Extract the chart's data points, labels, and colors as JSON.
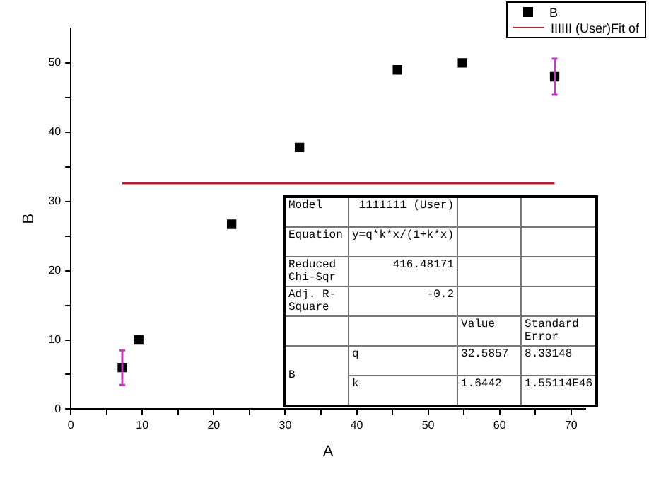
{
  "chart_data": {
    "type": "scatter",
    "xlabel": "A",
    "ylabel": "B",
    "xlim": [
      0,
      72
    ],
    "ylim": [
      0,
      55
    ],
    "xticks": [
      0,
      {
        "value": 5,
        "label": null
      },
      10,
      {
        "value": 15,
        "label": null
      },
      20,
      {
        "value": 25,
        "label": null
      },
      30,
      {
        "value": 35,
        "label": null
      },
      40,
      {
        "value": 45,
        "label": null
      },
      50,
      {
        "value": 55,
        "label": null
      },
      60,
      {
        "value": 65,
        "label": null
      },
      70
    ],
    "yticks": [
      0,
      {
        "value": 5,
        "label": null
      },
      10,
      {
        "value": 15,
        "label": null
      },
      20,
      {
        "value": 25,
        "label": null
      },
      30,
      {
        "value": 35,
        "label": null
      },
      40,
      {
        "value": 45,
        "label": null
      },
      50
    ],
    "grid": false,
    "legend": "top right",
    "marker": "square",
    "series": [
      {
        "name": "B",
        "color": "#000000",
        "x": [
          7.2,
          9.5,
          22.5,
          32,
          45.7,
          54.8,
          67.7
        ],
        "values": [
          6,
          10,
          26.7,
          37.8,
          49,
          50,
          48
        ],
        "errors": [
          2.5,
          null,
          null,
          null,
          null,
          null,
          2.6
        ]
      },
      {
        "name": "IIIIII (User)Fit of",
        "type": "line",
        "color": "#b22222",
        "marker": "none",
        "x": [
          7.2,
          67.7
        ],
        "values": [
          32.6,
          32.6
        ]
      }
    ],
    "annotations": [
      "Model",
      "1111111 (User)",
      "Equation",
      "y=q*k*x/(1+k*x)",
      "Reduced Chi-Sqr",
      "416.48171",
      "Adj. R-Square",
      "-0.2",
      "Value",
      "Standard Error",
      "B",
      "q",
      "32.5857",
      "8.33148",
      "k",
      "1.6442",
      "1.55114E46"
    ]
  }
}
